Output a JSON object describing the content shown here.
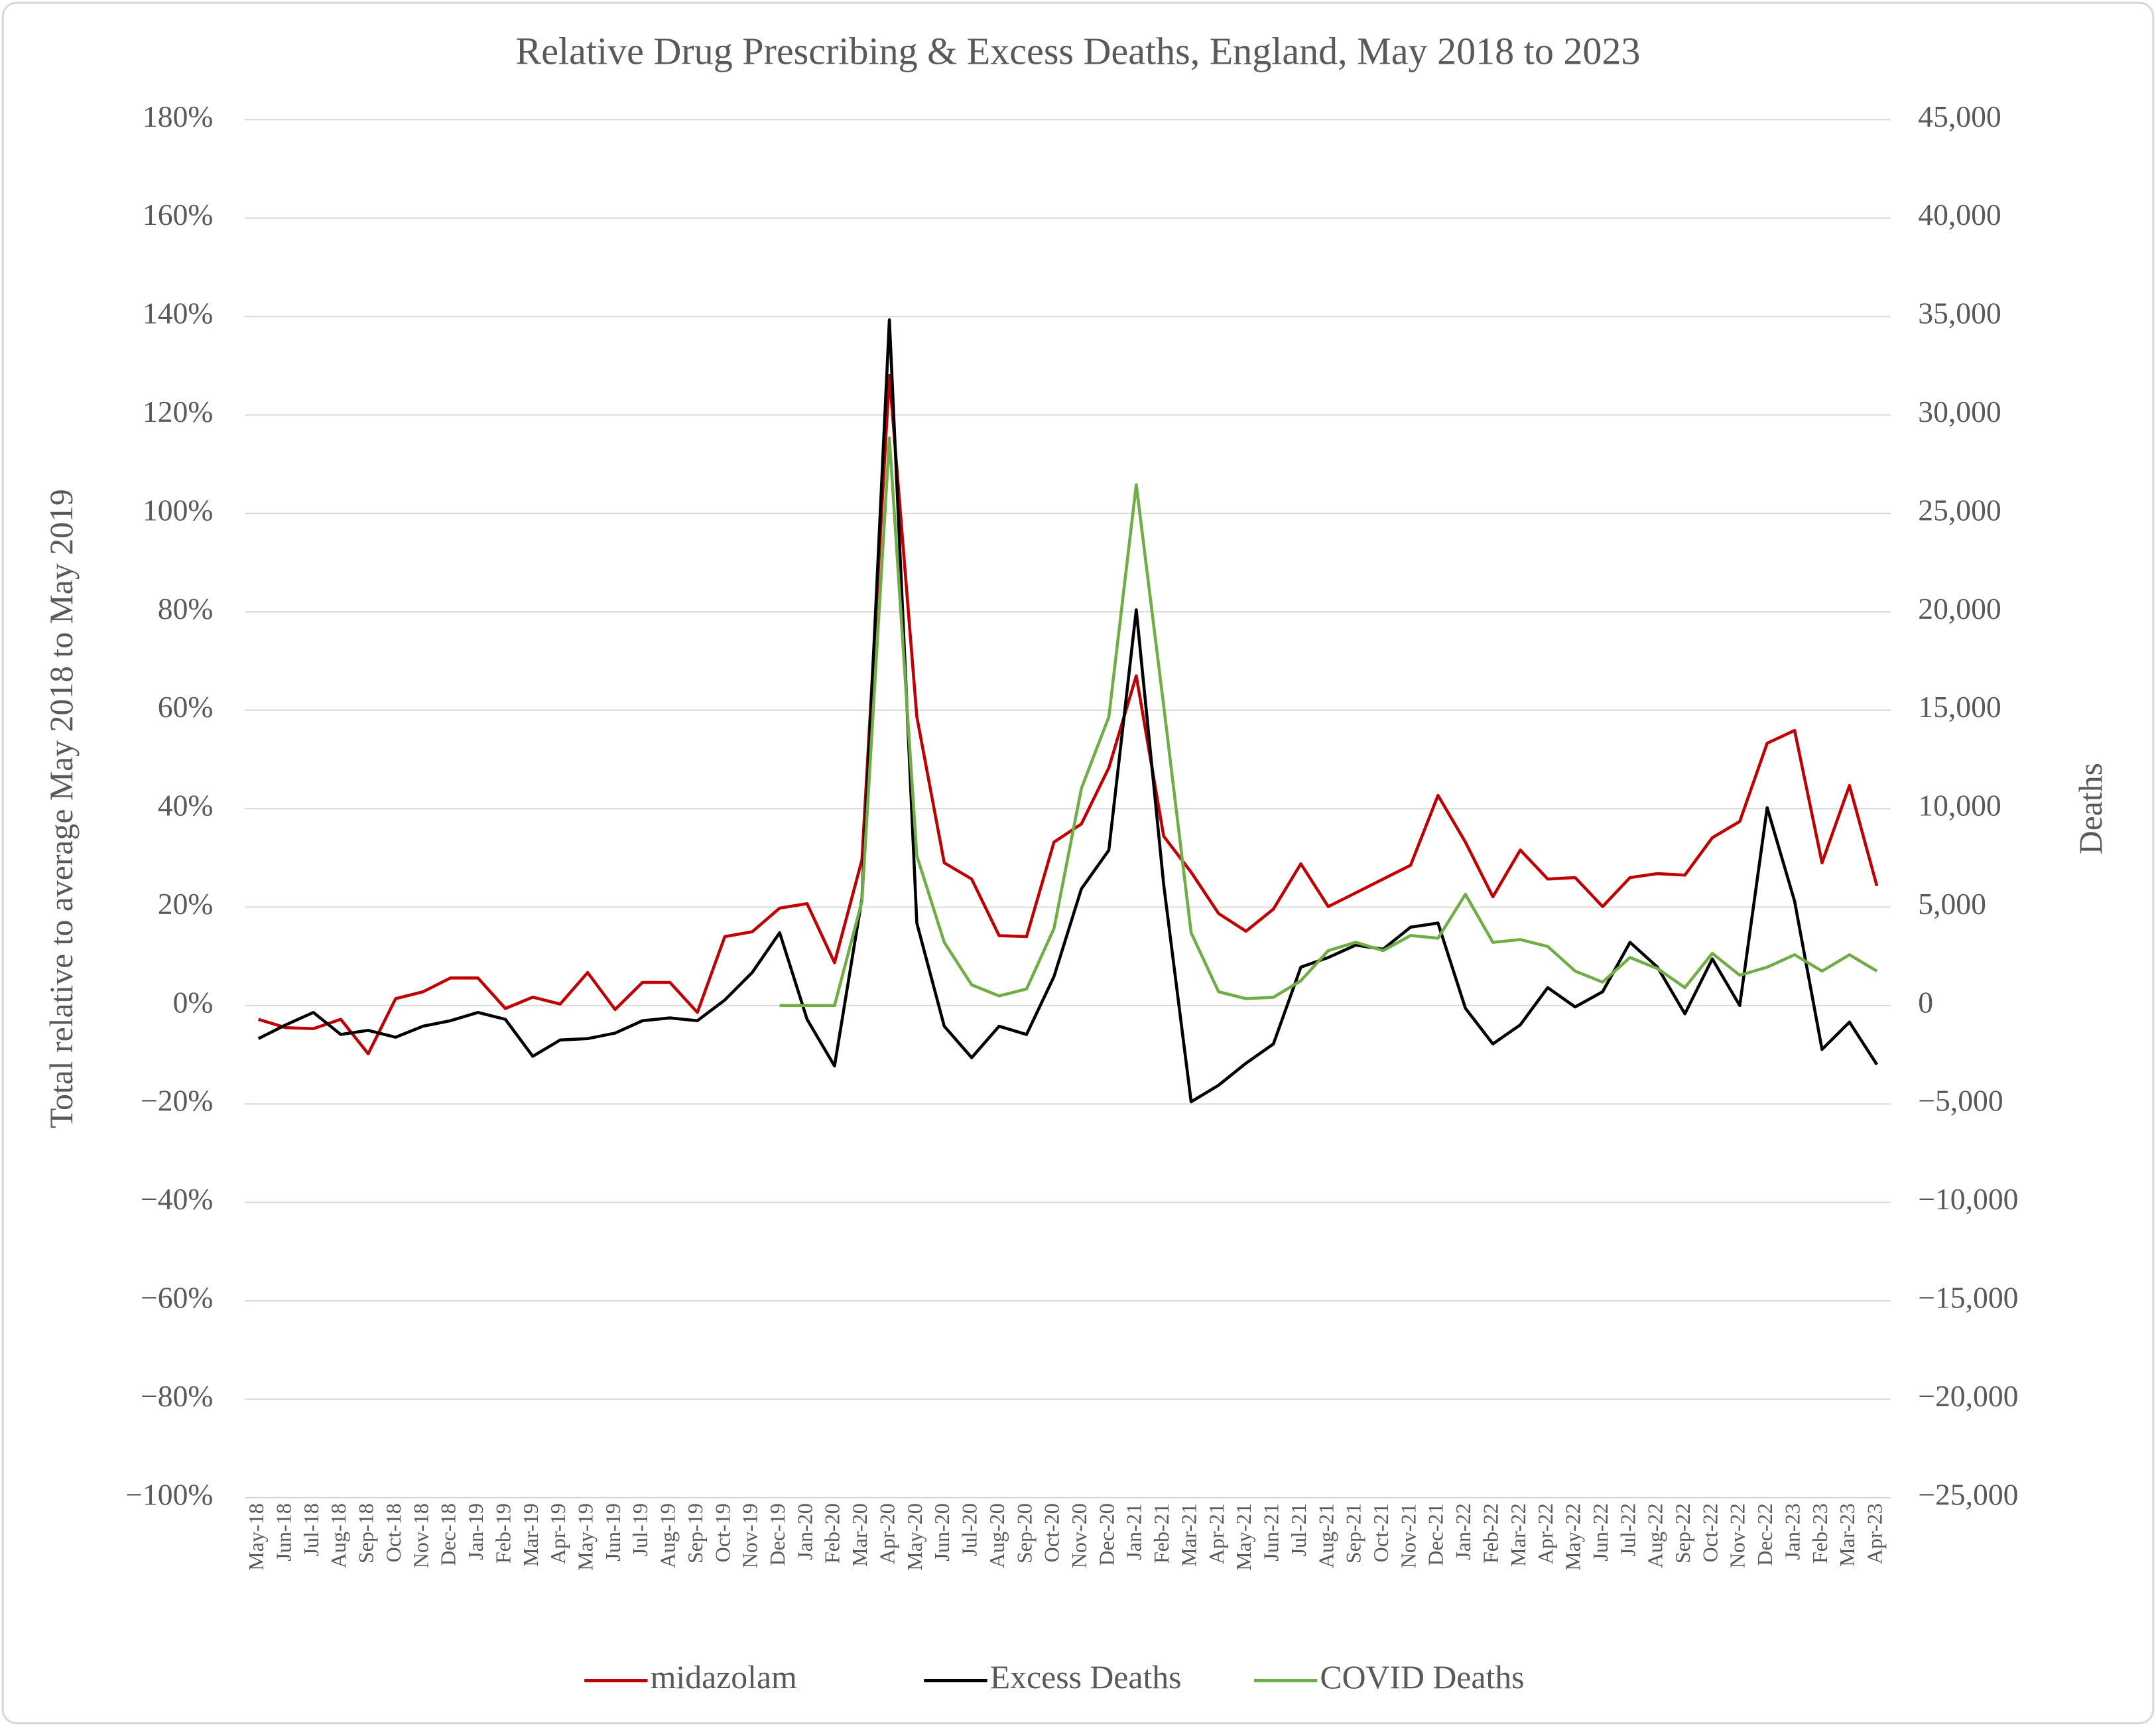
{
  "chart_data": {
    "type": "line",
    "title": "Relative Drug Prescribing & Excess Deaths, England, May 2018 to 2023",
    "y_label": "Total relative to average May 2018 to May 2019",
    "y2_label": "Deaths",
    "categories": [
      "May-18",
      "Jun-18",
      "Jul-18",
      "Aug-18",
      "Sep-18",
      "Oct-18",
      "Nov-18",
      "Dec-18",
      "Jan-19",
      "Feb-19",
      "Mar-19",
      "Apr-19",
      "May-19",
      "Jun-19",
      "Jul-19",
      "Aug-19",
      "Sep-19",
      "Oct-19",
      "Nov-19",
      "Dec-19",
      "Jan-20",
      "Feb-20",
      "Mar-20",
      "Apr-20",
      "May-20",
      "Jun-20",
      "Jul-20",
      "Aug-20",
      "Sep-20",
      "Oct-20",
      "Nov-20",
      "Dec-20",
      "Jan-21",
      "Feb-21",
      "Mar-21",
      "Apr-21",
      "May-21",
      "Jun-21",
      "Jul-21",
      "Aug-21",
      "Sep-21",
      "Oct-21",
      "Nov-21",
      "Dec-21",
      "Jan-22",
      "Feb-22",
      "Mar-22",
      "Apr-22",
      "May-22",
      "Jun-22",
      "Jul-22",
      "Aug-22",
      "Sep-22",
      "Oct-22",
      "Nov-22",
      "Dec-22",
      "Jan-23",
      "Feb-23",
      "Mar-23",
      "Apr-23"
    ],
    "series": [
      {
        "name": "midazolam",
        "color": "#c00000",
        "axis": "y",
        "values": [
          -2.8,
          -4.5,
          -4.7,
          -2.8,
          -9.8,
          1.4,
          2.8,
          5.6,
          5.6,
          -0.6,
          1.7,
          0.3,
          6.7,
          -0.8,
          4.7,
          4.7,
          -1.4,
          14,
          15,
          19.8,
          20.7,
          8.7,
          29.6,
          128,
          58.7,
          29,
          25.7,
          14.2,
          14,
          33.2,
          36.9,
          48.3,
          67,
          34.4,
          27.1,
          18.7,
          15.1,
          19.6,
          28.8,
          20.1,
          22.9,
          25.7,
          28.5,
          42.7,
          33.2,
          22.1,
          31.6,
          25.7,
          26,
          20.1,
          26,
          26.8,
          26.5,
          34.1,
          37.4,
          53.3,
          55.9,
          29,
          44.7,
          24.3
        ]
      },
      {
        "name": "Excess Deaths",
        "color": "#000000",
        "axis": "y2",
        "values": [
          -1680,
          -980,
          -350,
          -1470,
          -1260,
          -1610,
          -1050,
          -770,
          -350,
          -700,
          -2580,
          -1750,
          -1680,
          -1400,
          -770,
          -630,
          -770,
          280,
          1680,
          3700,
          -700,
          -3070,
          5440,
          34830,
          4190,
          -1050,
          -2650,
          -1050,
          -1470,
          1470,
          5930,
          7890,
          20100,
          6140,
          -4890,
          -4050,
          -2930,
          -1950,
          1950,
          2440,
          3070,
          2860,
          3980,
          4190,
          -140,
          -1950,
          -980,
          910,
          -70,
          700,
          3210,
          1950,
          -420,
          2370,
          0,
          10050,
          5300,
          -2230,
          -840,
          -3000
        ]
      },
      {
        "name": "COVID Deaths",
        "color": "#70ad47",
        "axis": "y2",
        "values": [
          null,
          null,
          null,
          null,
          null,
          null,
          null,
          null,
          null,
          null,
          null,
          null,
          null,
          null,
          null,
          null,
          null,
          null,
          null,
          0,
          0,
          0,
          5300,
          28830,
          7610,
          3210,
          1050,
          490,
          840,
          3910,
          11030,
          14660,
          26460,
          15220,
          3700,
          700,
          350,
          420,
          1260,
          2790,
          3210,
          2790,
          3560,
          3420,
          5650,
          3210,
          3350,
          3000,
          1750,
          1190,
          2440,
          1880,
          910,
          2650,
          1540,
          1950,
          2580,
          1750,
          2580,
          1750
        ]
      }
    ],
    "ylim": [
      -100,
      180
    ],
    "yticks": [
      {
        "value": -100,
        "label": "−100%"
      },
      {
        "value": -80,
        "label": "−80%"
      },
      {
        "value": -60,
        "label": "−60%"
      },
      {
        "value": -40,
        "label": "−40%"
      },
      {
        "value": -20,
        "label": "−20%"
      },
      {
        "value": 0,
        "label": "0%"
      },
      {
        "value": 20,
        "label": "20%"
      },
      {
        "value": 40,
        "label": "40%"
      },
      {
        "value": 60,
        "label": "60%"
      },
      {
        "value": 80,
        "label": "80%"
      },
      {
        "value": 100,
        "label": "100%"
      },
      {
        "value": 120,
        "label": "120%"
      },
      {
        "value": 140,
        "label": "140%"
      },
      {
        "value": 160,
        "label": "160%"
      },
      {
        "value": 180,
        "label": "180%"
      }
    ],
    "y2lim": [
      -25000,
      45000
    ],
    "y2ticks": [
      {
        "value": -25000,
        "label": "−25,000"
      },
      {
        "value": -20000,
        "label": "−20,000"
      },
      {
        "value": -15000,
        "label": "−15,000"
      },
      {
        "value": -10000,
        "label": "−10,000"
      },
      {
        "value": -5000,
        "label": "−5,000"
      },
      0,
      {
        "value": 5000,
        "label": "5,000"
      },
      {
        "value": 10000,
        "label": "10,000"
      },
      {
        "value": 15000,
        "label": "15,000"
      },
      {
        "value": 20000,
        "label": "20,000"
      },
      {
        "value": 25000,
        "label": "25,000"
      },
      {
        "value": 30000,
        "label": "30,000"
      },
      {
        "value": 35000,
        "label": "35,000"
      },
      {
        "value": 40000,
        "label": "40,000"
      },
      {
        "value": 45000,
        "label": "45,000"
      }
    ],
    "grid": true,
    "legend": "bottom"
  }
}
